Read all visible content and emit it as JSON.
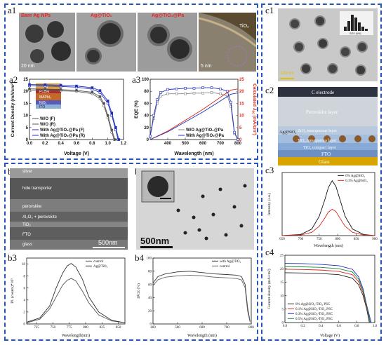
{
  "labels": {
    "a1": "a1",
    "a2": "a2",
    "a3": "a3",
    "b1": "b1",
    "b2": "b2",
    "b3": "b3",
    "b4": "b4",
    "c1": "c1",
    "c2": "c2",
    "c3": "c3",
    "c4": "c4"
  },
  "a1": {
    "captions": [
      "Bare Ag NPs",
      "Ag@TiO₂",
      "Ag@TiO₂@Pa"
    ],
    "scale": "20 nm",
    "scale_small": "5 nm",
    "tio2_label": "TiO₂"
  },
  "a2": {
    "device_layers": [
      "Ag",
      "PCBM",
      "MAPbI₃",
      "NiOₓ",
      "ITO"
    ]
  },
  "b1": {
    "layers": [
      "silver",
      "hole transporter",
      "perovskite",
      "Al₂O₃ + perovskite",
      "TiO₂",
      "FTO",
      "glass"
    ],
    "scale": "500nm"
  },
  "b2": {
    "scale": "500nm"
  },
  "c1": {
    "scale": "100 nm",
    "inset_xlabel": "SIZE (NM)"
  },
  "c2": {
    "layers": [
      "C electrode",
      "Perovskite layer",
      "ZrO₂ mesoporous layer",
      "TiO₂ mesoporous layer",
      "TiO₂ compact layer",
      "FTO",
      "Glass"
    ],
    "particle_label": "Ag@SiO₂"
  },
  "colors": {
    "frame": "#2a55b8",
    "series_blue": "#1f2fbf",
    "calc_red": "#d9261c"
  },
  "chart_data": [
    {
      "id": "a2",
      "type": "line",
      "xlabel": "Voltage (V)",
      "ylabel": "Current Density (mA/cm²)",
      "xlim": [
        0,
        1.2
      ],
      "ylim": [
        0,
        25
      ],
      "xticks": [
        0.0,
        0.2,
        0.4,
        0.6,
        0.8,
        1.0,
        1.2
      ],
      "xtick_labels": [
        "0.0",
        "0.2",
        "0.4",
        "0.6",
        "0.8",
        "1.0",
        "1.2"
      ],
      "yticks": [
        0,
        5,
        10,
        15,
        20,
        25
      ],
      "legend_position": "bottom-left",
      "series": [
        {
          "name": "W/O (F)",
          "color": "#555555",
          "style": "open-circle",
          "x": [
            0,
            0.2,
            0.4,
            0.6,
            0.8,
            0.9,
            0.95,
            1.0,
            1.05,
            1.08
          ],
          "y": [
            20.5,
            20.4,
            20.2,
            20.0,
            19.0,
            17.0,
            14.0,
            9.0,
            3.0,
            0
          ]
        },
        {
          "name": "W/O (R)",
          "color": "#555555",
          "style": "filled-circle",
          "x": [
            0,
            0.2,
            0.4,
            0.6,
            0.8,
            0.9,
            0.95,
            1.0,
            1.05,
            1.09
          ],
          "y": [
            21.0,
            20.9,
            20.7,
            20.4,
            19.6,
            17.8,
            15.0,
            10.0,
            4.0,
            0
          ]
        },
        {
          "name": "With Ag@TiO₂@Pa (F)",
          "color": "#1f2fbf",
          "style": "open-square",
          "x": [
            0,
            0.2,
            0.4,
            0.6,
            0.8,
            0.9,
            1.0,
            1.05,
            1.1,
            1.13
          ],
          "y": [
            22.3,
            22.2,
            22.0,
            21.7,
            20.9,
            19.5,
            15.0,
            10.0,
            4.0,
            0
          ]
        },
        {
          "name": "With Ag@TiO₂@Pa (R)",
          "color": "#1f2fbf",
          "style": "filled-square",
          "x": [
            0,
            0.2,
            0.4,
            0.6,
            0.8,
            0.9,
            1.0,
            1.05,
            1.1,
            1.14
          ],
          "y": [
            22.8,
            22.7,
            22.5,
            22.2,
            21.5,
            20.3,
            16.0,
            11.0,
            5.0,
            0
          ]
        }
      ]
    },
    {
      "id": "a3",
      "type": "line",
      "xlabel": "Wavelength (nm)",
      "ylabel": "EQE (%)",
      "ylabel_right": "Calculated J",
      "ylabel_right_sub": "sc",
      "ylabel_right_unit": " (mA/cm²)",
      "xlim": [
        300,
        800
      ],
      "ylim": [
        0,
        100
      ],
      "ylim_right": [
        0,
        25
      ],
      "xticks": [
        400,
        500,
        600,
        700,
        800
      ],
      "yticks": [
        0,
        20,
        40,
        60,
        80,
        100
      ],
      "yticks_right": [
        0,
        5,
        10,
        15,
        20,
        25
      ],
      "legend_position": "bottom-right",
      "series": [
        {
          "name": "W/O Ag@TiO₂@Pa",
          "color": "#888888",
          "style": "open-square",
          "axis": "left",
          "x": [
            300,
            320,
            340,
            360,
            400,
            450,
            500,
            550,
            600,
            650,
            700,
            740,
            760,
            780,
            800
          ],
          "y": [
            5,
            35,
            60,
            72,
            76,
            76,
            76,
            77,
            77,
            78,
            76,
            72,
            55,
            10,
            0
          ]
        },
        {
          "name": "With Ag@TiO₂@Pa",
          "color": "#1f2fbf",
          "style": "open-square",
          "axis": "left",
          "x": [
            300,
            320,
            340,
            360,
            400,
            450,
            500,
            550,
            600,
            650,
            700,
            740,
            760,
            780,
            800
          ],
          "y": [
            6,
            40,
            66,
            78,
            83,
            84,
            85,
            85,
            86,
            86,
            84,
            80,
            62,
            12,
            0
          ]
        },
        {
          "name": "",
          "color": "#d9261c",
          "style": "line",
          "axis": "right",
          "x": [
            300,
            400,
            500,
            600,
            700,
            760,
            800
          ],
          "y": [
            0,
            3.5,
            8.0,
            12.5,
            17.5,
            20.5,
            21.0
          ]
        },
        {
          "name": "",
          "color": "#1f2fbf",
          "style": "line",
          "axis": "right",
          "x": [
            300,
            400,
            500,
            600,
            700,
            760,
            800
          ],
          "y": [
            0,
            3.2,
            7.3,
            11.4,
            16.0,
            18.8,
            19.3
          ]
        }
      ]
    },
    {
      "id": "b3",
      "type": "line",
      "xlabel": "Wavelength(nm)",
      "ylabel": "PL (counts)*10³",
      "xlim": [
        710,
        860
      ],
      "ylim": [
        0,
        11
      ],
      "xticks": [
        725,
        750,
        775,
        800,
        825,
        850
      ],
      "yticks": [
        0,
        2,
        4,
        6,
        8,
        10
      ],
      "legend_position": "top-right",
      "series": [
        {
          "name": "control",
          "color": "#555555",
          "x": [
            710,
            730,
            745,
            755,
            765,
            772,
            778,
            785,
            795,
            805,
            820,
            840,
            860
          ],
          "y": [
            0.2,
            0.8,
            2.5,
            4.5,
            6.5,
            7.3,
            7.6,
            7.2,
            5.5,
            3.5,
            1.5,
            0.5,
            0.2
          ]
        },
        {
          "name": "Ag@TiO₂",
          "color": "#333333",
          "x": [
            710,
            730,
            745,
            755,
            765,
            772,
            778,
            785,
            795,
            805,
            820,
            840,
            860
          ],
          "y": [
            0.3,
            1.0,
            3.0,
            6.0,
            8.5,
            9.7,
            10.1,
            9.5,
            7.5,
            4.5,
            2.0,
            0.6,
            0.2
          ]
        }
      ]
    },
    {
      "id": "b4",
      "type": "line",
      "xlabel": "Wavelength (nm)",
      "ylabel": "IPCE (%)",
      "xlim": [
        400,
        800
      ],
      "ylim": [
        0,
        100
      ],
      "xticks": [
        400,
        500,
        600,
        700,
        800
      ],
      "yticks": [
        0,
        20,
        40,
        60,
        80,
        100
      ],
      "legend_position": "top-right",
      "series": [
        {
          "name": "with Ag@TiO₂",
          "color": "#333333",
          "x": [
            400,
            420,
            450,
            500,
            550,
            600,
            650,
            700,
            740,
            760,
            775,
            785,
            795
          ],
          "y": [
            62,
            72,
            76,
            79,
            80,
            78,
            76,
            75,
            74,
            72,
            60,
            25,
            4
          ]
        },
        {
          "name": "control",
          "color": "#666666",
          "x": [
            400,
            420,
            450,
            500,
            550,
            600,
            650,
            700,
            740,
            760,
            775,
            785,
            795
          ],
          "y": [
            58,
            67,
            71,
            73,
            74,
            73,
            71,
            70,
            69,
            67,
            55,
            20,
            3
          ]
        }
      ]
    },
    {
      "id": "c3",
      "type": "line",
      "xlabel": "Wavelength (nm)",
      "ylabel": "Intensity (a.u.)",
      "xlim": [
        650,
        900
      ],
      "ylim": [
        0,
        1.15
      ],
      "xticks": [
        650,
        700,
        750,
        800,
        850,
        900
      ],
      "yticks": [],
      "legend_position": "top-right",
      "series": [
        {
          "name": "0% Ag@SiO₂",
          "color": "#111111",
          "x": [
            650,
            700,
            730,
            750,
            765,
            775,
            785,
            795,
            805,
            820,
            840,
            870,
            900
          ],
          "y": [
            0.0,
            0.02,
            0.12,
            0.35,
            0.65,
            0.88,
            1.0,
            0.9,
            0.68,
            0.35,
            0.12,
            0.02,
            0.0
          ]
        },
        {
          "name": "0.3% Ag@SiO₂",
          "color": "#d9261c",
          "x": [
            650,
            700,
            730,
            750,
            765,
            775,
            785,
            795,
            805,
            820,
            840,
            870,
            900
          ],
          "y": [
            0.0,
            0.01,
            0.06,
            0.17,
            0.32,
            0.43,
            0.48,
            0.44,
            0.33,
            0.17,
            0.06,
            0.01,
            0.0
          ]
        }
      ]
    },
    {
      "id": "c4",
      "type": "line",
      "xlabel": "Voltage (V)",
      "ylabel": "Current density (mA/cm²)",
      "xlim": [
        0,
        1.0
      ],
      "ylim": [
        0,
        25
      ],
      "xticks": [
        0.0,
        0.2,
        0.4,
        0.6,
        0.8,
        1.0
      ],
      "xtick_labels": [
        "0.0",
        "0.2",
        "0.4",
        "0.6",
        "0.8",
        "1.0"
      ],
      "yticks": [
        0,
        5,
        10,
        15,
        20,
        25
      ],
      "legend_position": "bottom-left",
      "series": [
        {
          "name": "0% Ag@SiO₂-TiO₂ PSC",
          "color": "#222222",
          "x": [
            0,
            0.2,
            0.4,
            0.6,
            0.75,
            0.82,
            0.87,
            0.91,
            0.94
          ],
          "y": [
            18.5,
            18.4,
            18.2,
            17.8,
            16.5,
            14.0,
            10.0,
            5.0,
            0
          ]
        },
        {
          "name": "0.1% Ag@SiO₂-TiO₂ PSC",
          "color": "#d9261c",
          "x": [
            0,
            0.2,
            0.4,
            0.6,
            0.75,
            0.82,
            0.87,
            0.91,
            0.95
          ],
          "y": [
            19.8,
            19.7,
            19.5,
            19.0,
            17.8,
            15.2,
            11.0,
            5.5,
            0
          ]
        },
        {
          "name": "0.3% Ag@SiO₂-TiO₂ PSC",
          "color": "#1f2fbf",
          "x": [
            0,
            0.2,
            0.4,
            0.6,
            0.75,
            0.82,
            0.87,
            0.91,
            0.96
          ],
          "y": [
            22.0,
            21.9,
            21.6,
            21.1,
            19.8,
            17.0,
            12.5,
            6.5,
            0
          ]
        },
        {
          "name": "0.5% Ag@SiO₂-TiO₂ PSC",
          "color": "#1a8a3a",
          "x": [
            0,
            0.2,
            0.4,
            0.6,
            0.75,
            0.82,
            0.87,
            0.91,
            0.95
          ],
          "y": [
            20.8,
            20.7,
            20.5,
            20.0,
            18.8,
            16.1,
            11.8,
            6.0,
            0
          ]
        }
      ]
    }
  ]
}
